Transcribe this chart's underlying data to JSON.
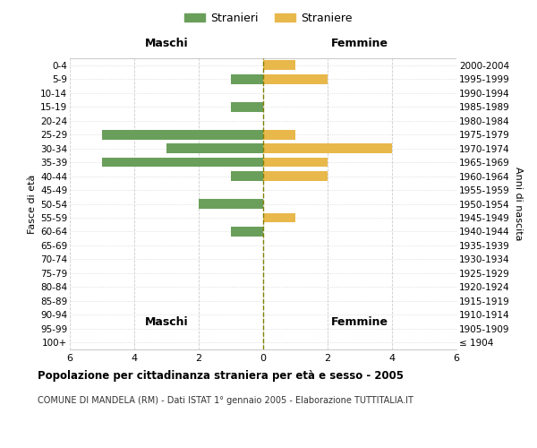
{
  "age_groups": [
    "100+",
    "95-99",
    "90-94",
    "85-89",
    "80-84",
    "75-79",
    "70-74",
    "65-69",
    "60-64",
    "55-59",
    "50-54",
    "45-49",
    "40-44",
    "35-39",
    "30-34",
    "25-29",
    "20-24",
    "15-19",
    "10-14",
    "5-9",
    "0-4"
  ],
  "birth_years": [
    "≤ 1904",
    "1905-1909",
    "1910-1914",
    "1915-1919",
    "1920-1924",
    "1925-1929",
    "1930-1934",
    "1935-1939",
    "1940-1944",
    "1945-1949",
    "1950-1954",
    "1955-1959",
    "1960-1964",
    "1965-1969",
    "1970-1974",
    "1975-1979",
    "1980-1984",
    "1985-1989",
    "1990-1994",
    "1995-1999",
    "2000-2004"
  ],
  "males": [
    0,
    0,
    0,
    0,
    0,
    0,
    0,
    0,
    1,
    0,
    2,
    0,
    1,
    5,
    3,
    5,
    0,
    1,
    0,
    1,
    0
  ],
  "females": [
    0,
    0,
    0,
    0,
    0,
    0,
    0,
    0,
    0,
    1,
    0,
    0,
    2,
    2,
    4,
    1,
    0,
    0,
    0,
    2,
    1
  ],
  "male_color": "#6a9f5b",
  "female_color": "#e8b84b",
  "title": "Popolazione per cittadinanza straniera per età e sesso - 2005",
  "subtitle": "COMUNE DI MANDELA (RM) - Dati ISTAT 1° gennaio 2005 - Elaborazione TUTTITALIA.IT",
  "xlabel_left": "Maschi",
  "xlabel_right": "Femmine",
  "ylabel_left": "Fasce di età",
  "ylabel_right": "Anni di nascita",
  "legend_male": "Stranieri",
  "legend_female": "Straniere",
  "xlim": 6,
  "background_color": "#ffffff",
  "grid_color": "#cccccc"
}
